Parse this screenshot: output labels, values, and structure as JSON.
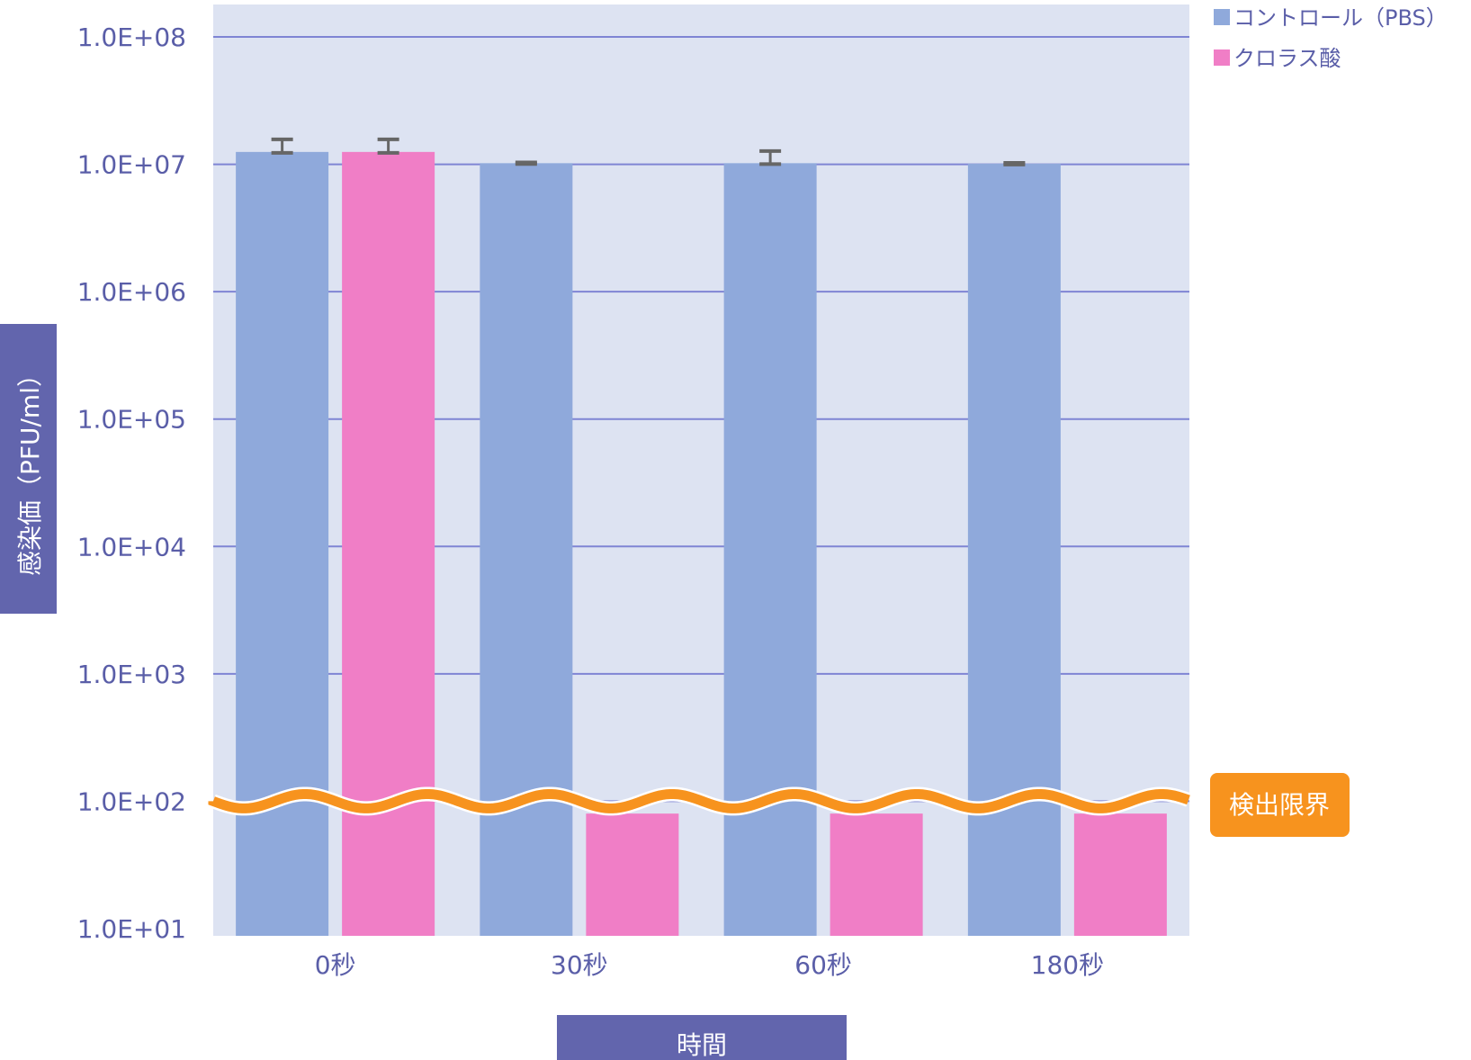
{
  "chart_data": {
    "type": "bar",
    "scale": "log10",
    "ylim": [
      10.0,
      100000000.0
    ],
    "ylabel": "感染価（PFU/ml）",
    "xlabel": "時間",
    "y_ticks": [
      "1.0E+01",
      "1.0E+02",
      "1.0E+03",
      "1.0E+04",
      "1.0E+05",
      "1.0E+06",
      "1.0E+07",
      "1.0E+08"
    ],
    "categories": [
      "0秒",
      "30秒",
      "60秒",
      "180秒"
    ],
    "series": [
      {
        "name": "コントロール（PBS）",
        "color": "#8fa9db",
        "values": [
          12500000,
          10200000,
          10200000,
          10100000
        ],
        "error": [
          3200000,
          150000,
          2500000,
          150000
        ]
      },
      {
        "name": "クロラス酸",
        "color": "#f07ec6",
        "values": [
          12500000,
          80,
          80,
          80
        ],
        "error": [
          3200000,
          0,
          0,
          0
        ]
      }
    ],
    "detection_limit": {
      "label": "検出限界",
      "value": 100,
      "color": "#f7931e"
    },
    "grid": true,
    "legend": "top-right",
    "plot_background": "#dde3f2",
    "gridline_color": "#7f85d4",
    "text_color": "#5a5ea8",
    "label_box_color": "#6265ad"
  }
}
